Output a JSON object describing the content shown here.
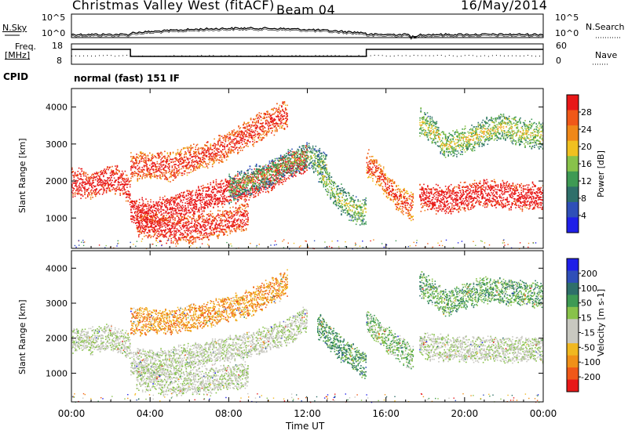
{
  "header": {
    "station": "Christmas Valley West (fitACF)",
    "beam": "Beam 04",
    "date": "16/May/2014"
  },
  "panels": {
    "nsky_label": "N.Sky",
    "nsky_ticks": [
      "10^5",
      "10^0"
    ],
    "nsearch_label": "N.Search",
    "nsearch_ticks": [
      "10^5",
      "10^0"
    ],
    "freq_label": "Freq.",
    "freq_unit": "[MHz]",
    "freq_ticks": [
      "18",
      "8"
    ],
    "nave_label": "Nave",
    "nave_ticks": [
      "60",
      "0"
    ],
    "cpid_label": "CPID",
    "cpid_text": "normal (fast) 151 IF"
  },
  "colors": {
    "power": [
      "#1f1fe8",
      "#2f4fb8",
      "#2e6f6a",
      "#3e9a54",
      "#88c24a",
      "#f0c020",
      "#f08818",
      "#f05818",
      "#e81818"
    ],
    "velocity": [
      "#e81818",
      "#f05818",
      "#f09018",
      "#f0b820",
      "#c8c8c0",
      "#c8c8c0",
      "#88c24a",
      "#3e9a54",
      "#2e6f6a",
      "#2f4fb8",
      "#1f1fe8"
    ]
  },
  "chart_data": [
    {
      "type": "heatmap",
      "name": "power",
      "ylabel": "Slant Range [km]",
      "xlabel": "Time UT",
      "x_ticks": [
        "00:00",
        "04:00",
        "08:00",
        "12:00",
        "16:00",
        "20:00",
        "00:00"
      ],
      "y_ticks": [
        4000,
        3000,
        2000,
        1000
      ],
      "ylim": [
        180,
        4500
      ],
      "colorbar_label": "Power [dB]",
      "colorbar_ticks": [
        28,
        24,
        20,
        16,
        12,
        8,
        4
      ],
      "bands": [
        {
          "x": [
            0.0,
            0.5,
            1.0,
            1.5,
            2.0,
            2.5,
            3.0
          ],
          "y": [
            2000,
            1950,
            1900,
            2000,
            2100,
            2000,
            1700
          ],
          "level": 0.85
        },
        {
          "x": [
            3.0,
            4.0,
            5.0,
            6.0,
            7.0,
            8.0,
            9.0,
            10.0,
            11.0,
            12.0
          ],
          "y": [
            1200,
            1150,
            1250,
            1400,
            1600,
            1750,
            1900,
            2100,
            2400,
            2650
          ],
          "level": 0.92
        },
        {
          "x": [
            3.0,
            4.0,
            5.0,
            6.0,
            7.0,
            8.0,
            9.0,
            10.0,
            11.0
          ],
          "y": [
            2400,
            2450,
            2400,
            2600,
            2750,
            3000,
            3300,
            3600,
            3850
          ],
          "level": 0.75
        },
        {
          "x": [
            8.0,
            9.0,
            10.0,
            11.0,
            12.0,
            12.5,
            13.0
          ],
          "y": [
            1800,
            2000,
            2200,
            2500,
            2700,
            2600,
            2400
          ],
          "level": 0.25
        },
        {
          "x": [
            12.5,
            13.0,
            13.5,
            14.0,
            14.5,
            15.0
          ],
          "y": [
            2400,
            2000,
            1600,
            1400,
            1200,
            1200
          ],
          "level": 0.3
        },
        {
          "x": [
            15.0,
            15.5,
            16.0,
            16.5,
            17.0,
            17.4
          ],
          "y": [
            2500,
            2300,
            1900,
            1600,
            1400,
            1300
          ],
          "level": 0.7
        },
        {
          "x": [
            17.7,
            18.0,
            19.0,
            20.0,
            21.0,
            22.0,
            23.0,
            24.0
          ],
          "y": [
            1600,
            1550,
            1500,
            1600,
            1700,
            1650,
            1600,
            1600
          ],
          "level": 0.88
        },
        {
          "x": [
            17.7,
            18.5,
            19.0,
            20.0,
            21.0,
            22.0,
            23.0,
            24.0
          ],
          "y": [
            3600,
            3300,
            2950,
            3100,
            3350,
            3500,
            3300,
            3250
          ],
          "level": 0.35
        },
        {
          "x": [
            3.3,
            4.0,
            5.0,
            6.0,
            7.0,
            8.0,
            9.0
          ],
          "y": [
            900,
            800,
            700,
            700,
            800,
            900,
            1100
          ],
          "level": 0.8
        }
      ]
    },
    {
      "type": "heatmap",
      "name": "velocity",
      "ylabel": "Slant Range [km]",
      "xlabel": "Time UT",
      "x_ticks": [
        "00:00",
        "04:00",
        "08:00",
        "12:00",
        "16:00",
        "20:00",
        "00:00"
      ],
      "y_ticks": [
        4000,
        3000,
        2000,
        1000
      ],
      "ylim": [
        180,
        4500
      ],
      "colorbar_label": "Velocity [m s-1]",
      "colorbar_ticks": [
        200,
        100,
        50,
        15,
        -15,
        -50,
        -100,
        -200
      ],
      "bands": [
        {
          "x": [
            0.0,
            1.0,
            2.0,
            3.0
          ],
          "y": [
            2000,
            1950,
            2050,
            1800
          ],
          "level": 0.5
        },
        {
          "x": [
            3.0,
            5.0,
            7.0,
            9.0,
            11.0,
            12.0
          ],
          "y": [
            1300,
            1350,
            1600,
            1800,
            2200,
            2600
          ],
          "level": 0.5
        },
        {
          "x": [
            3.0,
            5.0,
            7.0,
            9.0,
            11.0
          ],
          "y": [
            2500,
            2500,
            2700,
            3000,
            3600
          ],
          "level": 0.25
        },
        {
          "x": [
            12.5,
            13.5,
            14.5,
            15.0
          ],
          "y": [
            2400,
            1800,
            1400,
            1200
          ],
          "level": 0.7
        },
        {
          "x": [
            15.0,
            16.0,
            17.4
          ],
          "y": [
            2500,
            2000,
            1400
          ],
          "level": 0.6
        },
        {
          "x": [
            17.7,
            20.0,
            24.0
          ],
          "y": [
            1800,
            1700,
            1700
          ],
          "level": 0.5
        },
        {
          "x": [
            17.7,
            19.0,
            21.0,
            24.0
          ],
          "y": [
            3600,
            3000,
            3400,
            3250
          ],
          "level": 0.65
        },
        {
          "x": [
            3.3,
            5.0,
            7.0,
            9.0
          ],
          "y": [
            900,
            750,
            800,
            1000
          ],
          "level": 0.5
        }
      ]
    }
  ]
}
